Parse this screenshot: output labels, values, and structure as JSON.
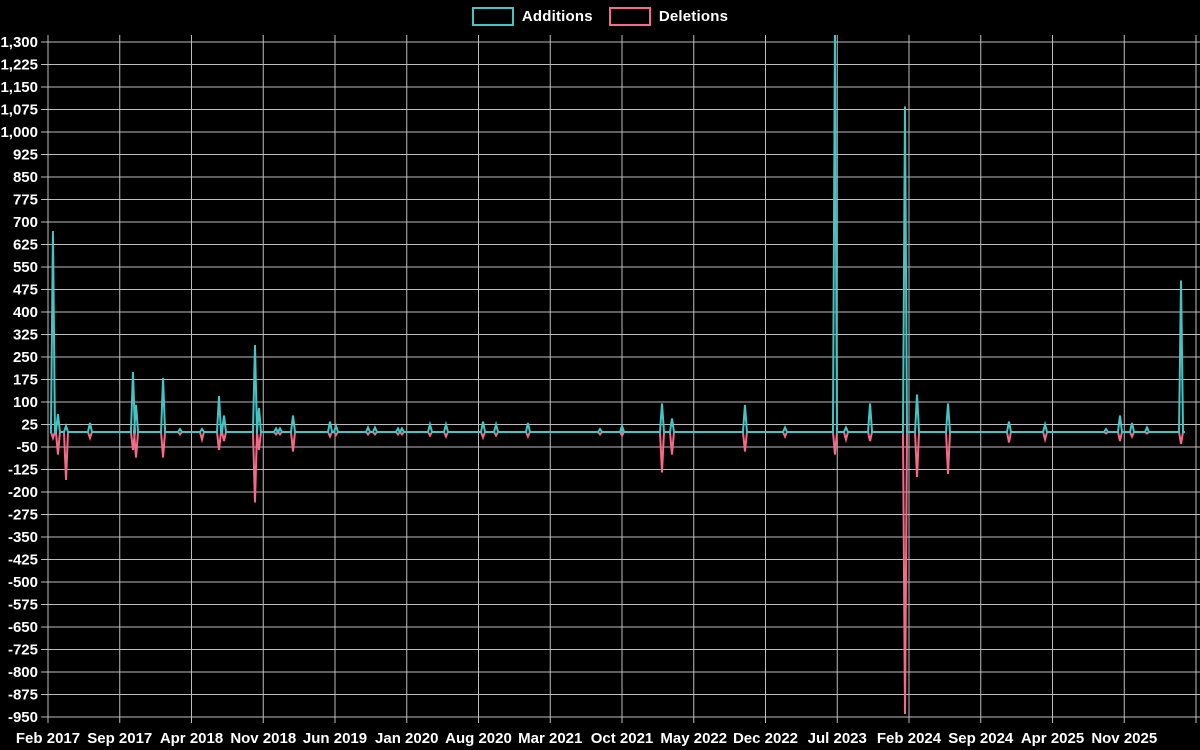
{
  "legend": {
    "items": [
      {
        "label": "Additions",
        "color": "#45c4c4"
      },
      {
        "label": "Deletions",
        "color": "#f56a8a"
      }
    ]
  },
  "chart_data": {
    "type": "line",
    "title": "",
    "background": "#000000",
    "grid": true,
    "grid_color": "#bdbdbd",
    "text_color": "#ffffff",
    "legend_position": "top-center",
    "series_meta": [
      {
        "name": "Additions",
        "color": "#45c4c4",
        "sign": "positive"
      },
      {
        "name": "Deletions",
        "color": "#f56a8a",
        "sign": "plotted as negative"
      }
    ],
    "y_axis": {
      "min": -950,
      "max": 1300,
      "tick_step": 75,
      "tick_labels": [
        "1,300",
        "1,225",
        "1,150",
        "1,075",
        "1,000",
        "925",
        "850",
        "775",
        "700",
        "625",
        "550",
        "475",
        "400",
        "325",
        "250",
        "175",
        "100",
        "25",
        "-50",
        "-125",
        "-200",
        "-275",
        "-350",
        "-425",
        "-500",
        "-575",
        "-650",
        "-725",
        "-800",
        "-875",
        "-950"
      ]
    },
    "x_axis": {
      "tick_labels": [
        "Feb 2017",
        "Sep 2017",
        "Apr 2018",
        "Nov 2018",
        "Jun 2019",
        "Jan 2020",
        "Aug 2020",
        "Mar 2021",
        "Oct 2021",
        "May 2022",
        "Dec 2022",
        "Jul 2023",
        "Feb 2024",
        "Sep 2024",
        "Apr 2025",
        "Nov 2025"
      ],
      "label_interval_months": 7
    },
    "baseline": 0,
    "points": [
      {
        "x": 0.0026,
        "date": "Feb 2017",
        "additions": 670,
        "deletions": -20
      },
      {
        "x": 0.007,
        "date": "Mar 2017",
        "additions": 60,
        "deletions": -75
      },
      {
        "x": 0.0141,
        "date": "Apr 2017",
        "additions": 20,
        "deletions": -160
      },
      {
        "x": 0.0352,
        "date": "Jun 2017",
        "additions": 30,
        "deletions": -20
      },
      {
        "x": 0.0731,
        "date": "Oct 2017",
        "additions": 200,
        "deletions": -60
      },
      {
        "x": 0.0758,
        "date": "Oct 2017",
        "additions": 90,
        "deletions": -85
      },
      {
        "x": 0.0996,
        "date": "Jan 2018",
        "additions": 180,
        "deletions": -85
      },
      {
        "x": 0.1145,
        "date": "Mar 2018",
        "additions": 10,
        "deletions": -8
      },
      {
        "x": 0.1339,
        "date": "May 2018",
        "additions": 10,
        "deletions": -25
      },
      {
        "x": 0.1489,
        "date": "Jun 2018",
        "additions": 120,
        "deletions": -60
      },
      {
        "x": 0.1533,
        "date": "Jul 2018",
        "additions": 55,
        "deletions": -30
      },
      {
        "x": 0.1806,
        "date": "Oct 2018",
        "additions": 290,
        "deletions": -235
      },
      {
        "x": 0.1841,
        "date": "Oct 2018",
        "additions": 80,
        "deletions": -60
      },
      {
        "x": 0.1991,
        "date": "Dec 2018",
        "additions": 12,
        "deletions": -8
      },
      {
        "x": 0.2026,
        "date": "Dec 2018",
        "additions": 12,
        "deletions": -8
      },
      {
        "x": 0.2141,
        "date": "Feb 2019",
        "additions": 55,
        "deletions": -65
      },
      {
        "x": 0.2467,
        "date": "May 2019",
        "additions": 35,
        "deletions": -15
      },
      {
        "x": 0.252,
        "date": "Jun 2019",
        "additions": 20,
        "deletions": -10
      },
      {
        "x": 0.2802,
        "date": "Sep 2019",
        "additions": 15,
        "deletions": -8
      },
      {
        "x": 0.2863,
        "date": "Oct 2019",
        "additions": 15,
        "deletions": -8
      },
      {
        "x": 0.3066,
        "date": "Dec 2019",
        "additions": 12,
        "deletions": -8
      },
      {
        "x": 0.3101,
        "date": "Dec 2019",
        "additions": 12,
        "deletions": -8
      },
      {
        "x": 0.3348,
        "date": "Mar 2020",
        "additions": 25,
        "deletions": -12
      },
      {
        "x": 0.3489,
        "date": "May 2020",
        "additions": 25,
        "deletions": -15
      },
      {
        "x": 0.3815,
        "date": "Aug 2020",
        "additions": 35,
        "deletions": -18
      },
      {
        "x": 0.393,
        "date": "Sep 2020",
        "additions": 25,
        "deletions": -12
      },
      {
        "x": 0.4211,
        "date": "Dec 2020",
        "additions": 30,
        "deletions": -15
      },
      {
        "x": 0.4846,
        "date": "Jul 2021",
        "additions": 10,
        "deletions": -8
      },
      {
        "x": 0.504,
        "date": "Oct 2021",
        "additions": 20,
        "deletions": -12
      },
      {
        "x": 0.5392,
        "date": "Feb 2022",
        "additions": 95,
        "deletions": -135
      },
      {
        "x": 0.548,
        "date": "Mar 2022",
        "additions": 45,
        "deletions": -75
      },
      {
        "x": 0.6123,
        "date": "Oct 2022",
        "additions": 90,
        "deletions": -65
      },
      {
        "x": 0.6476,
        "date": "Jan 2023",
        "additions": 15,
        "deletions": -15
      },
      {
        "x": 0.6916,
        "date": "Jun 2023",
        "additions": 1340,
        "deletions": -75
      },
      {
        "x": 0.7013,
        "date": "Jul 2023",
        "additions": 15,
        "deletions": -25
      },
      {
        "x": 0.7225,
        "date": "Oct 2023",
        "additions": 95,
        "deletions": -30
      },
      {
        "x": 0.7533,
        "date": "Jan 2024",
        "additions": 1085,
        "deletions": -940
      },
      {
        "x": 0.7639,
        "date": "Feb 2024",
        "additions": 125,
        "deletions": -150
      },
      {
        "x": 0.7912,
        "date": "May 2024",
        "additions": 95,
        "deletions": -140
      },
      {
        "x": 0.8449,
        "date": "Nov 2024",
        "additions": 35,
        "deletions": -35
      },
      {
        "x": 0.8767,
        "date": "Mar 2025",
        "additions": 25,
        "deletions": -25
      },
      {
        "x": 0.9304,
        "date": "Sep 2025",
        "additions": 10,
        "deletions": -5
      },
      {
        "x": 0.9427,
        "date": "Oct 2025",
        "additions": 55,
        "deletions": -30
      },
      {
        "x": 0.9533,
        "date": "Nov 2025",
        "additions": 30,
        "deletions": -15
      },
      {
        "x": 0.9665,
        "date": "Jan 2026",
        "additions": 15,
        "deletions": -5
      },
      {
        "x": 0.9965,
        "date": "Apr 2026",
        "additions": 505,
        "deletions": -40
      }
    ],
    "notes": "Jun 2023 additions spike is clipped at the top of the plot (exceeds 1,300). Deletions are plotted as negative values. Baseline between spikes is 0."
  }
}
